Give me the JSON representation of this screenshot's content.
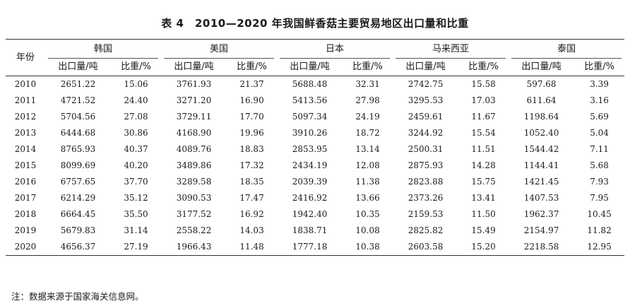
{
  "title": "表 4　2010—2020 年我国鲜香菇主要贸易地区出口量和比重",
  "year_header": "年份",
  "countries": [
    "韩国",
    "美国",
    "日本",
    "马来西亚",
    "泰国"
  ],
  "sub_headers": {
    "volume": "出口量/吨",
    "share": "比重/%"
  },
  "rows": [
    {
      "year": "2010",
      "cells": [
        "2651.22",
        "15.06",
        "3761.93",
        "21.37",
        "5688.48",
        "32.31",
        "2742.75",
        "15.58",
        "597.68",
        "3.39"
      ]
    },
    {
      "year": "2011",
      "cells": [
        "4721.52",
        "24.40",
        "3271.20",
        "16.90",
        "5413.56",
        "27.98",
        "3295.53",
        "17.03",
        "611.64",
        "3.16"
      ]
    },
    {
      "year": "2012",
      "cells": [
        "5704.56",
        "27.08",
        "3729.11",
        "17.70",
        "5097.34",
        "24.19",
        "2459.61",
        "11.67",
        "1198.64",
        "5.69"
      ]
    },
    {
      "year": "2013",
      "cells": [
        "6444.68",
        "30.86",
        "4168.90",
        "19.96",
        "3910.26",
        "18.72",
        "3244.92",
        "15.54",
        "1052.40",
        "5.04"
      ]
    },
    {
      "year": "2014",
      "cells": [
        "8765.93",
        "40.37",
        "4089.76",
        "18.83",
        "2853.95",
        "13.14",
        "2500.31",
        "11.51",
        "1544.42",
        "7.11"
      ]
    },
    {
      "year": "2015",
      "cells": [
        "8099.69",
        "40.20",
        "3489.86",
        "17.32",
        "2434.19",
        "12.08",
        "2875.93",
        "14.28",
        "1144.41",
        "5.68"
      ]
    },
    {
      "year": "2016",
      "cells": [
        "6757.65",
        "37.70",
        "3289.58",
        "18.35",
        "2039.39",
        "11.38",
        "2823.88",
        "15.75",
        "1421.45",
        "7.93"
      ]
    },
    {
      "year": "2017",
      "cells": [
        "6214.29",
        "35.12",
        "3090.53",
        "17.47",
        "2416.92",
        "13.66",
        "2373.26",
        "13.41",
        "1407.53",
        "7.95"
      ]
    },
    {
      "year": "2018",
      "cells": [
        "6664.45",
        "35.50",
        "3177.52",
        "16.92",
        "1942.40",
        "10.35",
        "2159.53",
        "11.50",
        "1962.37",
        "10.45"
      ]
    },
    {
      "year": "2019",
      "cells": [
        "5679.83",
        "31.14",
        "2558.22",
        "14.03",
        "1838.71",
        "10.08",
        "2825.82",
        "15.49",
        "2154.97",
        "11.82"
      ]
    },
    {
      "year": "2020",
      "cells": [
        "4656.37",
        "27.19",
        "1966.43",
        "11.48",
        "1777.18",
        "10.38",
        "2603.58",
        "15.20",
        "2218.58",
        "12.95"
      ]
    }
  ],
  "note": "注：数据来源于国家海关信息网。"
}
